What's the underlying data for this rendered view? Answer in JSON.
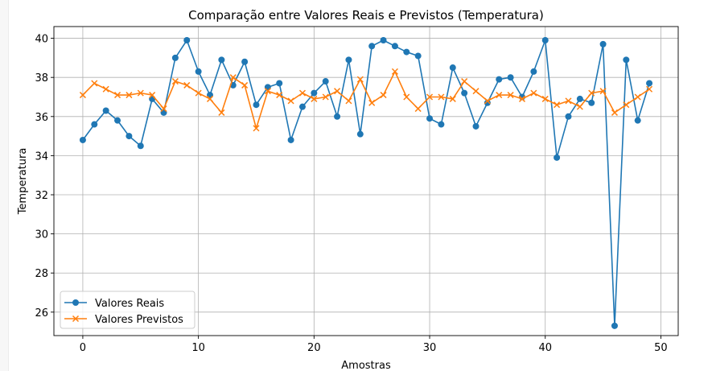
{
  "chart_data": {
    "type": "line",
    "title": "Comparação entre Valores Reais e Previstos (Temperatura)",
    "xlabel": "Amostras",
    "ylabel": "Temperatura",
    "xlim": [
      -2.5,
      51.5
    ],
    "ylim": [
      24.8,
      40.6
    ],
    "xticks": [
      0,
      10,
      20,
      30,
      40,
      50
    ],
    "yticks": [
      26,
      28,
      30,
      32,
      34,
      36,
      38,
      40
    ],
    "grid": true,
    "legend_position": "lower-left",
    "x": [
      0,
      1,
      2,
      3,
      4,
      5,
      6,
      7,
      8,
      9,
      10,
      11,
      12,
      13,
      14,
      15,
      16,
      17,
      18,
      19,
      20,
      21,
      22,
      23,
      24,
      25,
      26,
      27,
      28,
      29,
      30,
      31,
      32,
      33,
      34,
      35,
      36,
      37,
      38,
      39,
      40,
      41,
      42,
      43,
      44,
      45,
      46,
      47,
      48,
      49
    ],
    "series": [
      {
        "name": "Valores Reais",
        "color": "#1f77b4",
        "marker": "circle",
        "values": [
          34.8,
          35.6,
          36.3,
          35.8,
          35.0,
          34.5,
          36.9,
          36.2,
          39.0,
          39.9,
          38.3,
          37.1,
          38.9,
          37.6,
          38.8,
          36.6,
          37.5,
          37.7,
          34.8,
          36.5,
          37.2,
          37.8,
          36.0,
          38.9,
          35.1,
          39.6,
          39.9,
          39.6,
          39.3,
          39.1,
          35.9,
          35.6,
          38.5,
          37.2,
          35.5,
          36.7,
          37.9,
          38.0,
          37.0,
          38.3,
          39.9,
          33.9,
          36.0,
          36.9,
          36.7,
          39.7,
          25.3,
          38.9,
          35.8,
          37.7
        ]
      },
      {
        "name": "Valores Previstos",
        "color": "#ff7f0e",
        "marker": "x",
        "values": [
          37.1,
          37.7,
          37.4,
          37.1,
          37.1,
          37.2,
          37.1,
          36.4,
          37.8,
          37.6,
          37.2,
          36.9,
          36.2,
          38.0,
          37.6,
          35.4,
          37.3,
          37.1,
          36.8,
          37.2,
          36.9,
          37.0,
          37.3,
          36.8,
          37.9,
          36.7,
          37.1,
          38.3,
          37.0,
          36.4,
          37.0,
          37.0,
          36.9,
          37.8,
          37.3,
          36.8,
          37.1,
          37.1,
          36.9,
          37.2,
          36.9,
          36.6,
          36.8,
          36.5,
          37.2,
          37.3,
          36.2,
          36.6,
          37.0,
          37.4
        ]
      }
    ]
  }
}
